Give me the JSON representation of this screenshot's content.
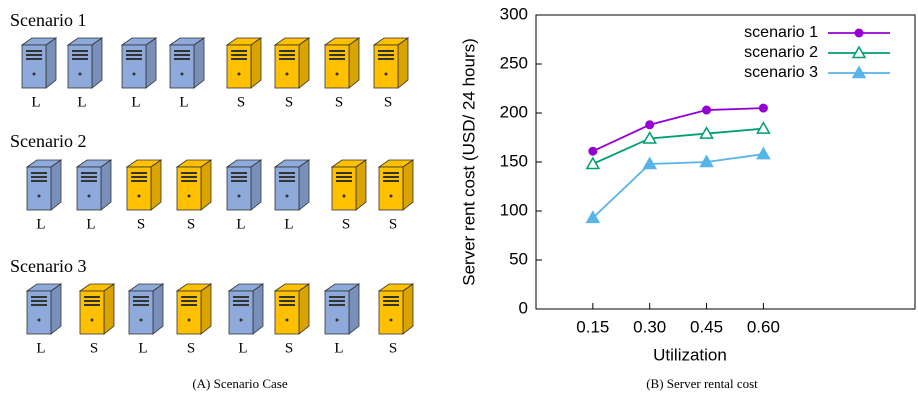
{
  "scenarios": [
    {
      "title": "Scenario 1",
      "servers": [
        "L",
        "L",
        "L",
        "L",
        "S",
        "S",
        "S",
        "S"
      ]
    },
    {
      "title": "Scenario 2",
      "servers": [
        "L",
        "L",
        "S",
        "S",
        "L",
        "L",
        "S",
        "S"
      ]
    },
    {
      "title": "Scenario 3",
      "servers": [
        "L",
        "S",
        "L",
        "S",
        "L",
        "S",
        "L",
        "S"
      ]
    }
  ],
  "server_colors": {
    "L": "#8eaadb",
    "S": "#ffc000"
  },
  "left_caption": "(A) Scenario Case",
  "right_caption": "(B) Server rental cost",
  "chart_data": {
    "type": "line",
    "x_label": "Utilization",
    "y_label": "Server rent cost (USD/ 24 hours)",
    "x": [
      0.15,
      0.3,
      0.45,
      0.6
    ],
    "xlim": [
      0,
      1
    ],
    "xticks": [
      {
        "value": 0.15,
        "label": "0.15"
      },
      {
        "value": 0.3,
        "label": "0.30"
      },
      {
        "value": 0.45,
        "label": "0.45"
      },
      {
        "value": 0.6,
        "label": "0.60"
      }
    ],
    "ylim": [
      0,
      300
    ],
    "yticks": [
      0,
      50,
      100,
      150,
      200,
      250,
      300
    ],
    "grid": false,
    "legend": "top-right",
    "series": [
      {
        "name": "scenario 1",
        "color": "#9400d3",
        "marker": "circle",
        "values": [
          161,
          188,
          203,
          205
        ]
      },
      {
        "name": "scenario 2",
        "color": "#009e73",
        "marker": "open-triangle",
        "values": [
          148,
          174,
          179,
          184
        ]
      },
      {
        "name": "scenario 3",
        "color": "#56b4e9",
        "marker": "triangle",
        "values": [
          93,
          148,
          150,
          158
        ]
      }
    ]
  }
}
